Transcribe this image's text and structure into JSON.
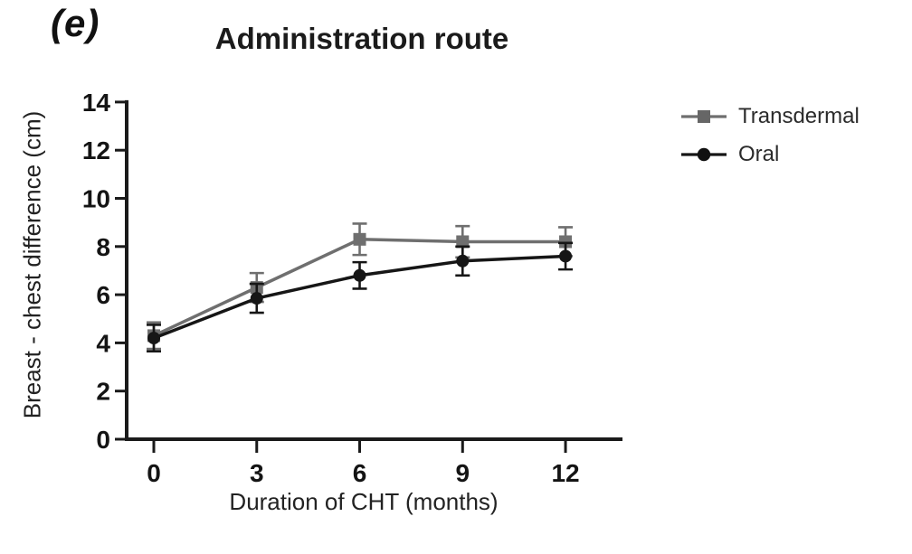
{
  "panel_label": "(e)",
  "title": "Administration route",
  "legend": {
    "items": [
      {
        "label": "Transdermal",
        "marker": "square",
        "color": "#6f6f6f"
      },
      {
        "label": "Oral",
        "marker": "circle",
        "color": "#161616"
      }
    ]
  },
  "chart_data": {
    "type": "line",
    "title": "Administration route",
    "xlabel": "Duration of CHT (months)",
    "ylabel": "Breast - chest difference (cm)",
    "x": [
      0,
      3,
      6,
      9,
      12
    ],
    "xticks": [
      0,
      3,
      6,
      9,
      12
    ],
    "yticks": [
      0,
      2,
      4,
      6,
      8,
      10,
      12,
      14
    ],
    "xlim": [
      -0.9,
      13.7
    ],
    "ylim": [
      0,
      14
    ],
    "grid": false,
    "legend_position": "right",
    "error_bars": true,
    "series": [
      {
        "name": "Transdermal",
        "marker": "square",
        "color": "#6f6f6f",
        "values": [
          4.3,
          6.3,
          8.3,
          8.2,
          8.2
        ],
        "errors": [
          0.55,
          0.6,
          0.65,
          0.65,
          0.6
        ]
      },
      {
        "name": "Oral",
        "marker": "circle",
        "color": "#161616",
        "values": [
          4.2,
          5.85,
          6.8,
          7.4,
          7.6
        ],
        "errors": [
          0.55,
          0.6,
          0.55,
          0.6,
          0.55
        ]
      }
    ]
  }
}
